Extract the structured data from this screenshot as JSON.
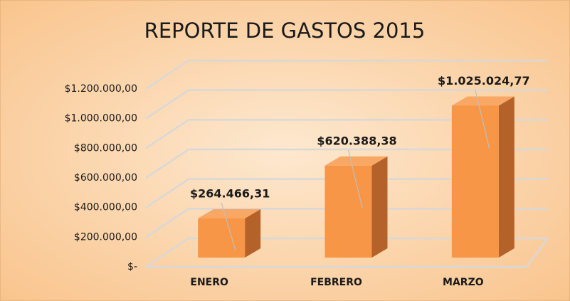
{
  "chart_data": {
    "type": "bar3d",
    "title": "REPORTE DE GASTOS 2015",
    "categories": [
      "ENERO",
      "FEBRERO",
      "MARZO"
    ],
    "values": [
      264466.31,
      620388.38,
      1025024.77
    ],
    "value_labels": [
      "$264.466,31",
      "$620.388,38",
      "$1.025.024,77"
    ],
    "color": "#f79646",
    "ylim": [
      0,
      1200000
    ],
    "yticks": [
      {
        "value": 0,
        "label": "$-"
      },
      {
        "value": 200000,
        "label": "$200.000,00"
      },
      {
        "value": 400000,
        "label": "$400.000,00"
      },
      {
        "value": 600000,
        "label": "$600.000,00"
      },
      {
        "value": 800000,
        "label": "$800.000,00"
      },
      {
        "value": 1000000,
        "label": "$1.000.000,00"
      },
      {
        "value": 1200000,
        "label": "$1.200.000,00"
      }
    ],
    "grid": true
  }
}
